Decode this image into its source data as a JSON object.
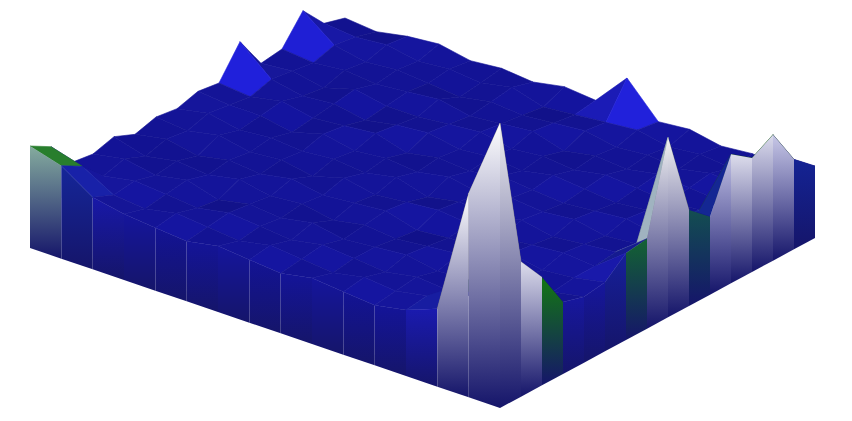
{
  "chart_data": {
    "type": "surface",
    "zlim": [
      0,
      100
    ],
    "z": [
      [
        34,
        30,
        21,
        20,
        22,
        19,
        21,
        20,
        22,
        21,
        31,
        20,
        21,
        30,
        22,
        20
      ],
      [
        31,
        27,
        20,
        22,
        19,
        21,
        20,
        22,
        21,
        20,
        22,
        21,
        20,
        22,
        21,
        19
      ],
      [
        24,
        21,
        22,
        20,
        21,
        19,
        22,
        20,
        21,
        22,
        20,
        19,
        21,
        20,
        22,
        21
      ],
      [
        22,
        20,
        21,
        22,
        20,
        21,
        20,
        21,
        19,
        20,
        21,
        22,
        20,
        21,
        20,
        22
      ],
      [
        21,
        22,
        20,
        19,
        22,
        20,
        21,
        20,
        22,
        21,
        19,
        20,
        21,
        20,
        21,
        20
      ],
      [
        20,
        21,
        22,
        21,
        20,
        22,
        19,
        21,
        20,
        22,
        21,
        20,
        22,
        19,
        20,
        21
      ],
      [
        22,
        20,
        21,
        20,
        21,
        20,
        22,
        20,
        21,
        19,
        22,
        21,
        20,
        21,
        22,
        20
      ],
      [
        21,
        22,
        20,
        22,
        19,
        21,
        20,
        22,
        20,
        21,
        20,
        22,
        21,
        20,
        19,
        22
      ],
      [
        20,
        21,
        22,
        20,
        21,
        22,
        21,
        19,
        22,
        20,
        21,
        20,
        22,
        21,
        20,
        21
      ],
      [
        22,
        20,
        21,
        21,
        20,
        19,
        22,
        21,
        20,
        22,
        20,
        21,
        19,
        22,
        21,
        32
      ],
      [
        21,
        22,
        20,
        22,
        21,
        20,
        21,
        20,
        22,
        21,
        22,
        20,
        21,
        20,
        22,
        21
      ],
      [
        20,
        21,
        22,
        20,
        22,
        21,
        20,
        22,
        21,
        20,
        21,
        22,
        20,
        21,
        20,
        22
      ],
      [
        22,
        23,
        21,
        21,
        20,
        22,
        21,
        20,
        22,
        21,
        20,
        21,
        22,
        20,
        21,
        20
      ],
      [
        26,
        30,
        22,
        20,
        21,
        20,
        22,
        21,
        20,
        22,
        21,
        20,
        21,
        22,
        20,
        21
      ],
      [
        68,
        40,
        24,
        22,
        20,
        21,
        21,
        22,
        21,
        20,
        22,
        21,
        20,
        21,
        22,
        20
      ],
      [
        95,
        45,
        36,
        24,
        22,
        23,
        29,
        30,
        60,
        32,
        26,
        43,
        38,
        42,
        30,
        24
      ]
    ]
  }
}
